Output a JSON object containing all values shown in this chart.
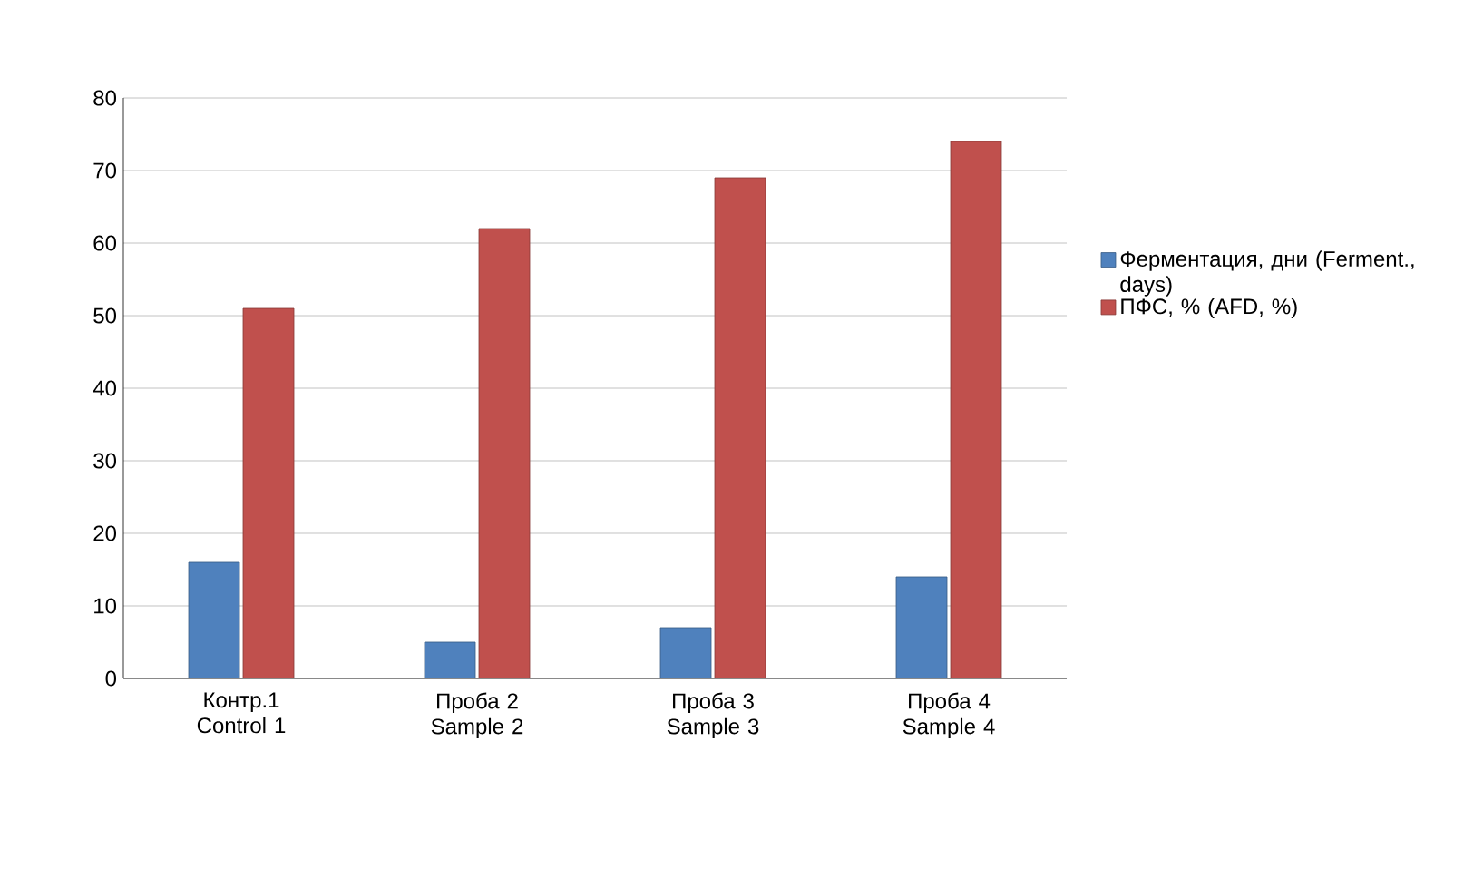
{
  "chart_data": {
    "type": "bar",
    "categories": [
      "Контр.1 Control 1",
      "Проба 2 Sample 2",
      "Проба 3 Sample 3",
      "Проба 4 Sample 4"
    ],
    "series": [
      {
        "name": "Ферментация, дни (Ferment., days)",
        "color": "#4f81bd",
        "values": [
          16,
          5,
          7,
          14
        ]
      },
      {
        "name": "ПФС, % (AFD, %)",
        "color": "#c0504d",
        "values": [
          51,
          62,
          69,
          74
        ]
      }
    ],
    "ylim": [
      0,
      80
    ],
    "yticks": [
      0,
      10,
      20,
      30,
      40,
      50,
      60,
      70,
      80
    ],
    "grid": "y",
    "legend": "right"
  }
}
